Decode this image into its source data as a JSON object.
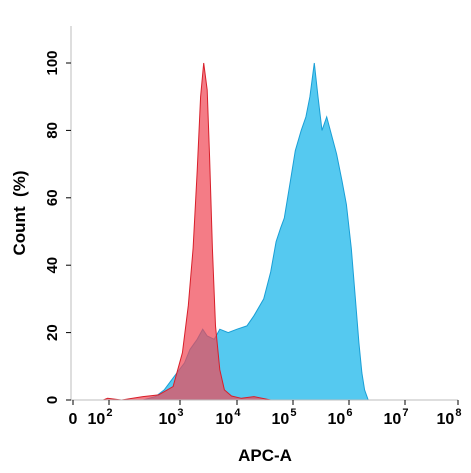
{
  "chart_data": {
    "type": "area",
    "xlabel": "APC-A",
    "ylabel": "Count  (%)",
    "x_scale": "log",
    "xlim": [
      0,
      100000000
    ],
    "ylim": [
      0,
      108
    ],
    "grid": false,
    "x_ticks": [
      {
        "base": "0",
        "exp": ""
      },
      {
        "base": "10",
        "exp": "2"
      },
      {
        "base": "10",
        "exp": "3"
      },
      {
        "base": "10",
        "exp": "4"
      },
      {
        "base": "10",
        "exp": "5"
      },
      {
        "base": "10",
        "exp": "6"
      },
      {
        "base": "10",
        "exp": "7"
      },
      {
        "base": "10",
        "exp": "8"
      }
    ],
    "y_ticks": [
      "0",
      "20",
      "40",
      "60",
      "80",
      "100"
    ],
    "colors": {
      "red": "#f04a57",
      "blue": "#4cc6ef",
      "overlap": "#b06a82"
    },
    "series": [
      {
        "fill": "#f04a57",
        "stroke": "#d81f2a",
        "points": [
          [
            40,
            0
          ],
          [
            80,
            0.5
          ],
          [
            150,
            0
          ],
          [
            300,
            1
          ],
          [
            500,
            1.5
          ],
          [
            800,
            4
          ],
          [
            1100,
            14
          ],
          [
            1400,
            28
          ],
          [
            1700,
            45
          ],
          [
            2000,
            68
          ],
          [
            2300,
            90
          ],
          [
            2600,
            100
          ],
          [
            3000,
            92
          ],
          [
            3300,
            72
          ],
          [
            3700,
            45
          ],
          [
            4200,
            22
          ],
          [
            5000,
            9
          ],
          [
            6000,
            3
          ],
          [
            8000,
            1.2
          ],
          [
            12000,
            0.5
          ],
          [
            20000,
            1
          ],
          [
            40000,
            0
          ]
        ]
      },
      {
        "fill": "#4cc6ef",
        "stroke": "#1a9fd6",
        "points": [
          [
            300,
            0
          ],
          [
            450,
            1
          ],
          [
            600,
            3
          ],
          [
            900,
            8
          ],
          [
            1200,
            11
          ],
          [
            1500,
            15
          ],
          [
            2000,
            18
          ],
          [
            2500,
            21
          ],
          [
            3000,
            19
          ],
          [
            4000,
            18
          ],
          [
            5000,
            21
          ],
          [
            7000,
            20
          ],
          [
            10000,
            21
          ],
          [
            15000,
            22
          ],
          [
            20000,
            25
          ],
          [
            30000,
            30
          ],
          [
            40000,
            38
          ],
          [
            50000,
            47
          ],
          [
            60000,
            51
          ],
          [
            70000,
            54
          ],
          [
            90000,
            65
          ],
          [
            110000,
            74
          ],
          [
            140000,
            80
          ],
          [
            170000,
            84
          ],
          [
            200000,
            90
          ],
          [
            240000,
            100
          ],
          [
            280000,
            90
          ],
          [
            330000,
            80
          ],
          [
            400000,
            84
          ],
          [
            500000,
            78
          ],
          [
            600000,
            73
          ],
          [
            750000,
            65
          ],
          [
            900000,
            58
          ],
          [
            1100000,
            45
          ],
          [
            1300000,
            30
          ],
          [
            1500000,
            17
          ],
          [
            1700000,
            8
          ],
          [
            1900000,
            3
          ],
          [
            2200000,
            0
          ]
        ]
      }
    ]
  }
}
